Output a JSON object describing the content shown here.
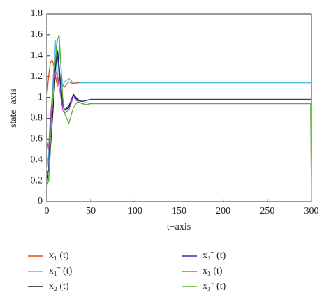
{
  "chart_data": {
    "type": "line",
    "xlabel": "t−axis",
    "ylabel": "state−axis",
    "x": [
      0,
      2,
      4,
      6,
      8,
      10,
      12,
      14,
      16,
      18,
      20,
      25,
      30,
      35,
      40,
      45,
      50,
      60,
      70,
      80,
      100,
      150,
      200,
      250,
      299,
      300
    ],
    "xlim": [
      0,
      300
    ],
    "xticks": [
      0,
      50,
      100,
      150,
      200,
      250,
      300
    ],
    "ylim": [
      0,
      1.8
    ],
    "yticks": [
      0,
      0.2,
      0.4,
      0.6,
      0.8,
      1,
      1.2,
      1.4,
      1.6,
      1.8
    ],
    "grid": false,
    "series": [
      {
        "name": "x₁ (t)",
        "color": "#d95319",
        "values": [
          1.0,
          1.2,
          1.33,
          1.36,
          1.3,
          1.2,
          1.1,
          1.2,
          1.16,
          1.12,
          1.1,
          1.15,
          1.13,
          1.14,
          1.14,
          1.14,
          1.14,
          1.14,
          1.14,
          1.14,
          1.14,
          1.14,
          1.14,
          1.14,
          1.14,
          1.14
        ]
      },
      {
        "name": "x₁˜ (t)",
        "color": "#4dbeee",
        "values": [
          0.3,
          0.45,
          0.7,
          1.0,
          1.3,
          1.55,
          1.1,
          1.5,
          1.3,
          1.1,
          1.15,
          1.18,
          1.14,
          1.15,
          1.14,
          1.14,
          1.14,
          1.14,
          1.14,
          1.14,
          1.14,
          1.14,
          1.14,
          1.14,
          1.14,
          1.14
        ]
      },
      {
        "name": "x₂ (t)",
        "color": "#1a1a2e",
        "values": [
          0.3,
          0.2,
          0.5,
          0.75,
          1.0,
          1.3,
          1.45,
          1.3,
          1.1,
          0.95,
          0.88,
          0.9,
          1.03,
          0.98,
          0.96,
          0.97,
          0.98,
          0.98,
          0.98,
          0.98,
          0.98,
          0.98,
          0.98,
          0.98,
          0.98,
          0.98
        ]
      },
      {
        "name": "x₂˜ (t)",
        "color": "#3030a0",
        "values": [
          0.25,
          0.3,
          0.75,
          0.9,
          1.2,
          1.35,
          1.4,
          1.25,
          1.05,
          0.92,
          0.88,
          0.92,
          1.02,
          0.97,
          0.96,
          0.97,
          0.98,
          0.98,
          0.98,
          0.98,
          0.98,
          0.98,
          0.98,
          0.98,
          0.98,
          0.98
        ]
      },
      {
        "name": "x₃ (t)",
        "color": "#c050c0",
        "values": [
          0.6,
          0.5,
          0.8,
          1.0,
          1.15,
          1.25,
          1.2,
          1.1,
          1.0,
          0.88,
          0.85,
          0.88,
          1.0,
          0.96,
          0.94,
          0.95,
          0.94,
          0.94,
          0.94,
          0.94,
          0.94,
          0.94,
          0.94,
          0.94,
          0.94,
          0.94
        ]
      },
      {
        "name": "x₃˜ (t)",
        "color": "#5cb030",
        "values": [
          0.15,
          0.2,
          0.55,
          0.9,
          1.2,
          1.4,
          1.55,
          1.6,
          1.3,
          1.0,
          0.85,
          0.75,
          0.9,
          0.96,
          0.94,
          0.93,
          0.94,
          0.94,
          0.94,
          0.94,
          0.94,
          0.94,
          0.94,
          0.94,
          0.94,
          0.0
        ]
      }
    ]
  }
}
